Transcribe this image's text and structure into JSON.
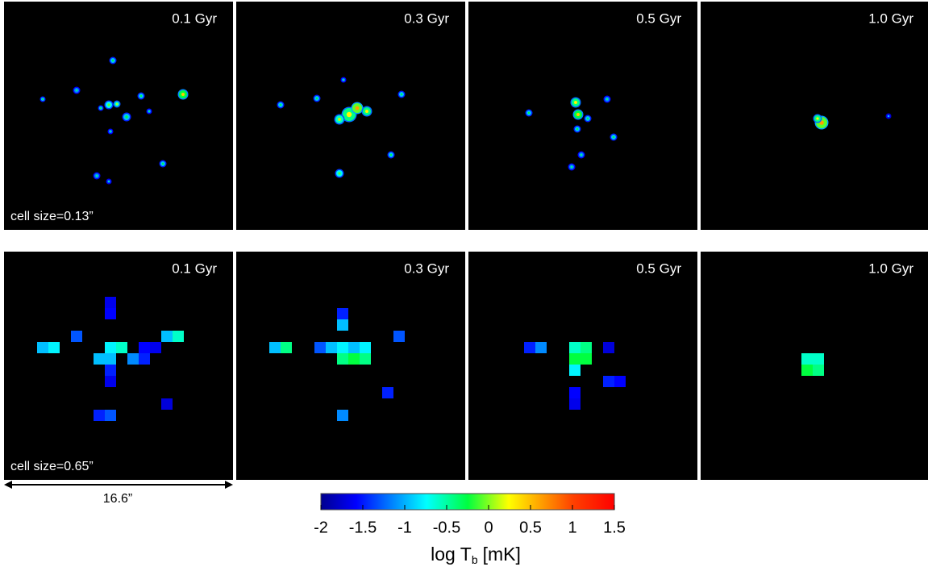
{
  "rows": [
    {
      "cell_size": "cell size=0.13”",
      "panels": [
        "0.1 Gyr",
        "0.3 Gyr",
        "0.5 Gyr",
        "1.0 Gyr"
      ]
    },
    {
      "cell_size": "cell size=0.65”",
      "panels": [
        "0.1 Gyr",
        "0.3 Gyr",
        "0.5 Gyr",
        "1.0 Gyr"
      ]
    }
  ],
  "scale_bar": "16.6”",
  "colorbar": {
    "label": "log T",
    "label_sub": "b",
    "label_unit": "[mK]",
    "lim": [
      -2,
      1.5
    ],
    "ticks": [
      -2,
      -1.5,
      -1,
      -0.5,
      0,
      0.5,
      1,
      1.5
    ]
  }
}
